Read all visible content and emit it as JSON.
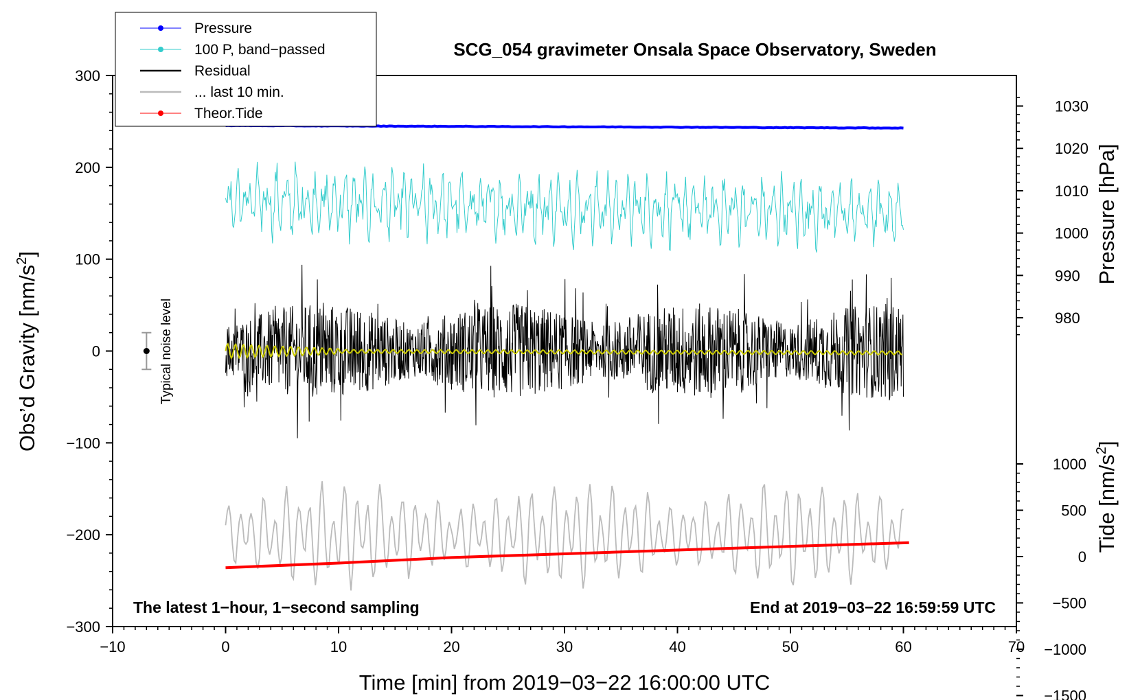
{
  "chart_data": {
    "type": "line",
    "title": "SCG_054 gravimeter Onsala Space Observatory, Sweden",
    "xlabel": "Time [min] from 2019−03−22 16:00:00 UTC",
    "ylabel_left": "Obs’d Gravity [nm/s2]",
    "ylabel_left_base": "Obs’d Gravity [nm/s",
    "ylabel_left_sup": "2",
    "ylabel_left_end": "]",
    "ylabel_right_pressure": "Pressure [hPa]",
    "ylabel_right_tide": "Tide [nm/s2]",
    "ylabel_right_tide_base": "Tide [nm/s",
    "ylabel_right_tide_sup": "2",
    "ylabel_right_tide_end": "]",
    "xlim": [
      -10,
      70
    ],
    "ylim": [
      -300,
      300
    ],
    "x_ticks": [
      -10,
      0,
      10,
      20,
      30,
      40,
      50,
      60,
      70
    ],
    "x_tick_labels": [
      "−10",
      "0",
      "10",
      "20",
      "30",
      "40",
      "50",
      "60",
      "70"
    ],
    "y_ticks": [
      300,
      200,
      100,
      0,
      -100,
      -200,
      -300
    ],
    "y_tick_labels": [
      "300",
      "200",
      "100",
      "0",
      "−100",
      "−200",
      "−300"
    ],
    "pressure_ticks": [
      1030,
      1020,
      1010,
      1000,
      990,
      980
    ],
    "pressure_tick_labels": [
      "1030",
      "1020",
      "1010",
      "1000",
      "990",
      "980"
    ],
    "tide_ticks": [
      1000,
      500,
      0,
      -500,
      -1000,
      -1500
    ],
    "tide_tick_labels": [
      "1000",
      "500",
      "0",
      "−500",
      "−1000",
      "−1500"
    ],
    "note_left": "The latest 1−hour, 1−second sampling",
    "note_right": "End at 2019−03−22 16:59:59 UTC",
    "noise_label": "Typical noise level",
    "noise_level": {
      "x": -7,
      "center": 0,
      "halfwidth": 20
    },
    "legend": [
      {
        "label": "Pressure",
        "color": "#0000ff",
        "marker": true
      },
      {
        "label": "100 P, band−passed",
        "color": "#33cccc",
        "marker": true
      },
      {
        "label": "Residual",
        "color": "#000000",
        "marker": false
      },
      {
        "label": "... last 10 min.",
        "color": "#bbbbbb",
        "marker": false
      },
      {
        "label": "Theor.Tide",
        "color": "#ff0000",
        "marker": true
      }
    ],
    "series": [
      {
        "name": "Pressure",
        "axis": "pressure",
        "color": "#0000ff",
        "x": [
          0,
          10,
          20,
          30,
          40,
          50,
          60
        ],
        "y": [
          1025.4,
          1025.3,
          1025.2,
          1025.1,
          1025.0,
          1024.9,
          1024.8
        ]
      },
      {
        "name": "100 P, band−passed",
        "axis": "gravity",
        "color": "#33cccc",
        "x": [
          0,
          60
        ],
        "center": [
          163,
          150
        ],
        "amplitude": 30
      },
      {
        "name": "Residual",
        "axis": "gravity",
        "color": "#000000",
        "x": [
          0,
          60
        ],
        "center": [
          0,
          0
        ],
        "amplitude": 40
      },
      {
        "name": "... last 10 min.",
        "axis": "gravity",
        "color": "#bbbbbb",
        "x": [
          0,
          60
        ],
        "center": [
          -200,
          -200
        ],
        "amplitude": 35
      },
      {
        "name": "Theor.Tide",
        "axis": "tide",
        "color": "#ff0000",
        "x": [
          0,
          10,
          20,
          30,
          40,
          50,
          60.5
        ],
        "y": [
          -120,
          -70,
          -10,
          30,
          70,
          110,
          150
        ]
      },
      {
        "name": "Residual smoothed",
        "axis": "gravity",
        "color": "#cccc00",
        "x": [
          0,
          60
        ],
        "center": [
          0,
          -2
        ],
        "amplitude": 2
      }
    ]
  }
}
